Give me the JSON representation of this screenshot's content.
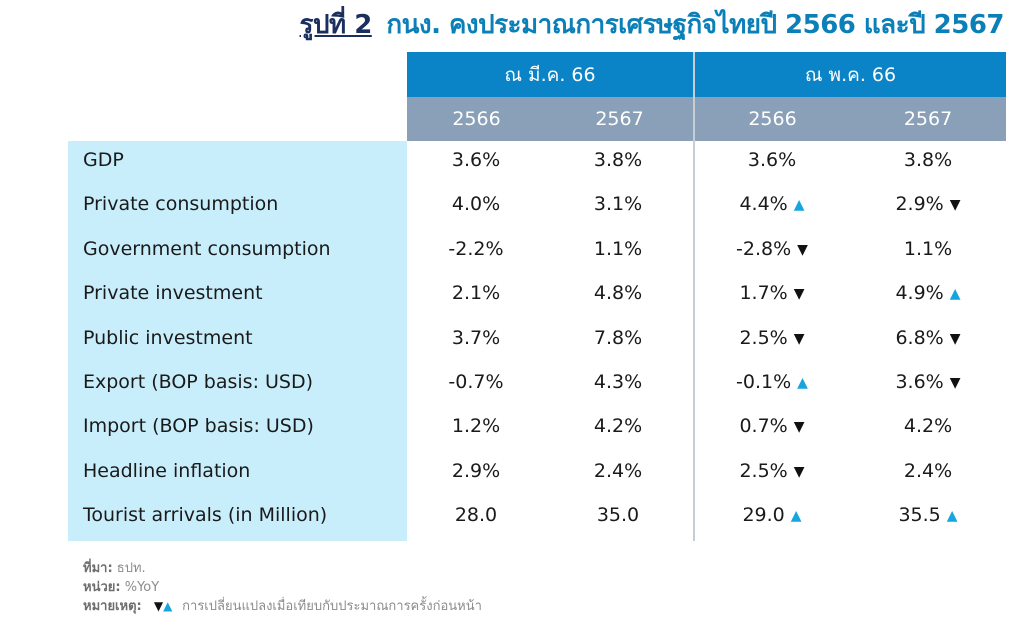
{
  "title": {
    "prefix": "รูปที่ 2",
    "text": "กนง. คงประมาณการเศรษฐกิจไทยปี 2566 และปี 2567"
  },
  "colors": {
    "group_header_bg": "#0a84c6",
    "year_header_bg": "#8aa0b8",
    "row_label_bg": "#c9eefb",
    "arrow_up": "#16a6dd",
    "arrow_down": "#111111"
  },
  "chart_data": {
    "type": "table",
    "column_groups": [
      "ณ มี.ค. 66",
      "ณ พ.ค. 66"
    ],
    "years": [
      "2566",
      "2567",
      "2566",
      "2567"
    ],
    "rows": [
      {
        "label": "GDP",
        "values": [
          "3.6%",
          "3.8%",
          "3.6%",
          "3.8%"
        ],
        "arrows": [
          "",
          "",
          "",
          ""
        ]
      },
      {
        "label": "Private consumption",
        "values": [
          "4.0%",
          "3.1%",
          "4.4%",
          "2.9%"
        ],
        "arrows": [
          "",
          "",
          "up",
          "down"
        ]
      },
      {
        "label": "Government consumption",
        "values": [
          "-2.2%",
          "1.1%",
          "-2.8%",
          "1.1%"
        ],
        "arrows": [
          "",
          "",
          "down",
          ""
        ]
      },
      {
        "label": "Private investment",
        "values": [
          "2.1%",
          "4.8%",
          "1.7%",
          "4.9%"
        ],
        "arrows": [
          "",
          "",
          "down",
          "up"
        ]
      },
      {
        "label": "Public investment",
        "values": [
          "3.7%",
          "7.8%",
          "2.5%",
          "6.8%"
        ],
        "arrows": [
          "",
          "",
          "down",
          "down"
        ]
      },
      {
        "label": "Export (BOP basis: USD)",
        "values": [
          "-0.7%",
          "4.3%",
          "-0.1%",
          "3.6%"
        ],
        "arrows": [
          "",
          "",
          "up",
          "down"
        ]
      },
      {
        "label": "Import (BOP basis: USD)",
        "values": [
          "1.2%",
          "4.2%",
          "0.7%",
          "4.2%"
        ],
        "arrows": [
          "",
          "",
          "down",
          ""
        ]
      },
      {
        "label": "Headline inflation",
        "values": [
          "2.9%",
          "2.4%",
          "2.5%",
          "2.4%"
        ],
        "arrows": [
          "",
          "",
          "down",
          ""
        ]
      },
      {
        "label": "Tourist arrivals (in Million)",
        "values": [
          "28.0",
          "35.0",
          "29.0",
          "35.5"
        ],
        "arrows": [
          "",
          "",
          "up",
          "up"
        ]
      }
    ]
  },
  "notes": {
    "source_label": "ที่มา:",
    "source_value": "ธปท.",
    "unit_label": "หน่วย:",
    "unit_value": "%YoY",
    "remark_label": "หมายเหตุ:",
    "remark_down_symbol": "▼",
    "remark_up_symbol": "▲",
    "remark_text": "การเปลี่ยนแปลงเมื่อเทียบกับประมาณการครั้งก่อนหน้า"
  }
}
